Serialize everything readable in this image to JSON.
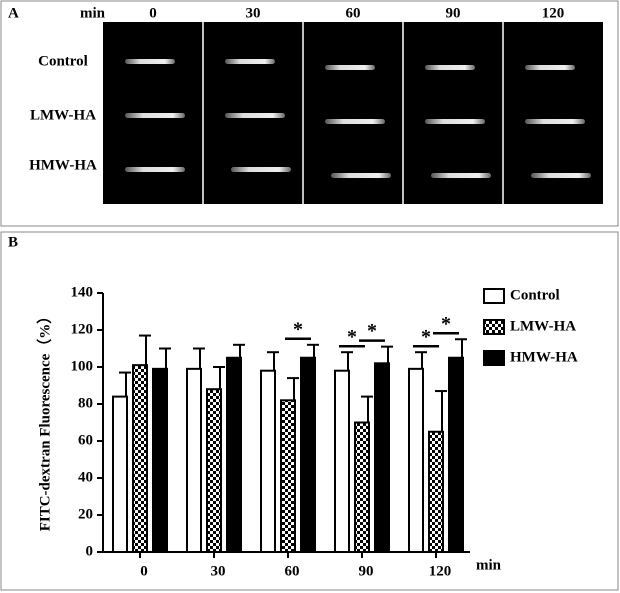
{
  "panel_a": {
    "panel_label": "A",
    "unit": "min",
    "columns": [
      "0",
      "30",
      "60",
      "90",
      "120"
    ],
    "rows": [
      "Control",
      "LMW-HA",
      "HMW-HA"
    ]
  },
  "chart_data": {
    "type": "bar",
    "panel_label": "B",
    "y_label": "FITC-dextran Fluorescence（%）",
    "x_label": "min",
    "categories": [
      "0",
      "30",
      "60",
      "90",
      "120"
    ],
    "series": [
      {
        "name": "Control",
        "color": "#ffffff",
        "values": [
          84,
          99,
          98,
          98,
          99
        ],
        "errors": [
          13,
          11,
          10,
          10,
          9
        ]
      },
      {
        "name": "LMW-HA",
        "color": "checker",
        "values": [
          101,
          88,
          82,
          70,
          65
        ],
        "errors": [
          16,
          12,
          12,
          14,
          22
        ]
      },
      {
        "name": "HMW-HA",
        "color": "#000000",
        "values": [
          99,
          105,
          105,
          102,
          105
        ],
        "errors": [
          11,
          7,
          7,
          9,
          10
        ]
      }
    ],
    "ylim": [
      0,
      140
    ],
    "yticks": [
      0,
      20,
      40,
      60,
      80,
      100,
      120,
      140
    ],
    "legend": "right",
    "annotations": [
      {
        "text": "*",
        "category": "60",
        "pair": [
          "LMW-HA",
          "HMW-HA"
        ]
      },
      {
        "text": "*",
        "category": "90",
        "pair": [
          "Control",
          "LMW-HA"
        ]
      },
      {
        "text": "*",
        "category": "90",
        "pair": [
          "LMW-HA",
          "HMW-HA"
        ]
      },
      {
        "text": "*",
        "category": "120",
        "pair": [
          "Control",
          "LMW-HA"
        ]
      },
      {
        "text": "*",
        "category": "120",
        "pair": [
          "LMW-HA",
          "HMW-HA"
        ]
      }
    ]
  }
}
